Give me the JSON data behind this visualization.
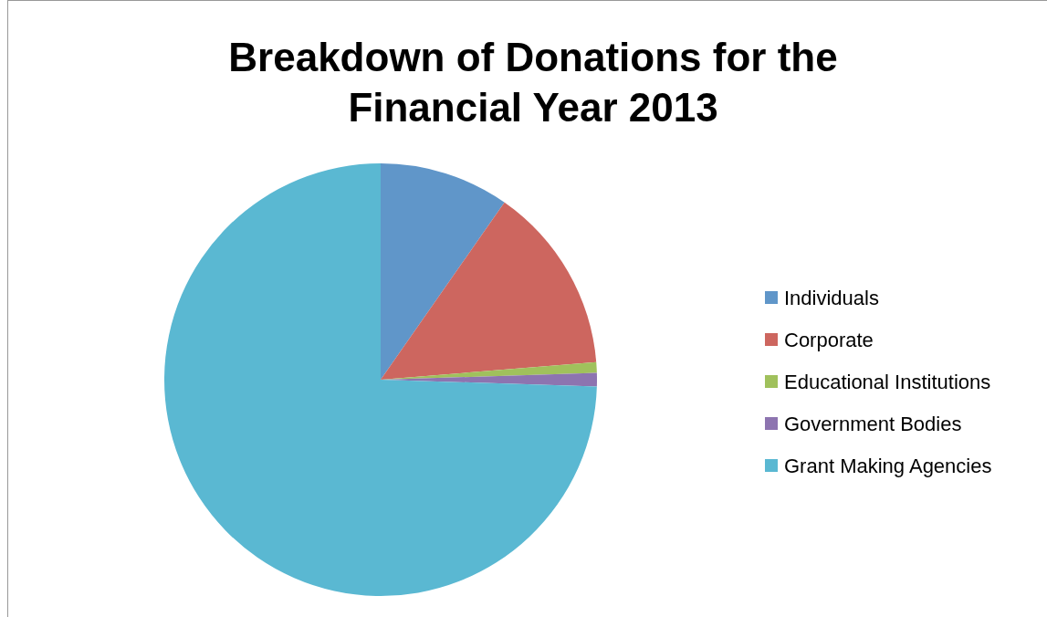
{
  "chart_data": {
    "type": "pie",
    "title": "Breakdown of Donations for the Financial Year 2013",
    "categories": [
      "Individuals",
      "Corporate",
      "Educational Institutions",
      "Government Bodies",
      "Grant Making Agencies"
    ],
    "values": [
      9.7,
      14,
      0.8,
      1,
      74.5
    ],
    "colors": [
      "#6096c9",
      "#cd665f",
      "#a0c15c",
      "#8d74b0",
      "#5ab8d2"
    ],
    "legend": "right"
  }
}
